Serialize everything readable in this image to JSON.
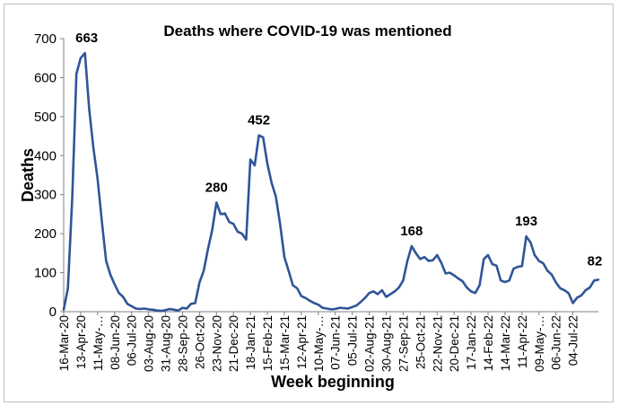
{
  "chart_data": {
    "type": "line",
    "title": "Deaths where COVID-19 was mentioned",
    "xlabel": "Week beginning",
    "ylabel": "Deaths",
    "ylim": [
      0,
      700
    ],
    "yticks": [
      0,
      100,
      200,
      300,
      400,
      500,
      600,
      700
    ],
    "series_color": "#2f5597",
    "x_tick_labels": [
      "16-Mar-20",
      "13-Apr-20",
      "11-May-…",
      "08-Jun-20",
      "06-Jul-20",
      "03-Aug-20",
      "31-Aug-20",
      "28-Sep-20",
      "26-Oct-20",
      "23-Nov-20",
      "21-Dec-20",
      "18-Jan-21",
      "15-Feb-21",
      "15-Mar-21",
      "12-Apr-21",
      "10-May-…",
      "07-Jun-21",
      "05-Jul-21",
      "02-Aug-21",
      "30-Aug-21",
      "27-Sep-21",
      "25-Oct-21",
      "22-Nov-21",
      "20-Dec-21",
      "17-Jan-22",
      "14-Feb-22",
      "14-Mar-22",
      "11-Apr-22",
      "09-May-…",
      "06-Jun-22",
      "04-Jul-22"
    ],
    "tick_every_weeks": 4,
    "values": [
      5,
      60,
      290,
      610,
      650,
      663,
      520,
      420,
      340,
      230,
      130,
      95,
      70,
      48,
      38,
      20,
      14,
      8,
      7,
      8,
      6,
      5,
      3,
      2,
      4,
      7,
      5,
      3,
      10,
      8,
      20,
      22,
      75,
      105,
      160,
      210,
      280,
      250,
      252,
      230,
      225,
      205,
      200,
      185,
      390,
      375,
      452,
      447,
      380,
      330,
      295,
      225,
      140,
      105,
      68,
      60,
      40,
      35,
      28,
      22,
      18,
      10,
      8,
      6,
      7,
      10,
      9,
      8,
      12,
      16,
      25,
      35,
      48,
      52,
      45,
      55,
      38,
      45,
      52,
      62,
      80,
      130,
      168,
      150,
      135,
      140,
      130,
      132,
      145,
      125,
      98,
      100,
      93,
      85,
      78,
      62,
      52,
      48,
      68,
      135,
      145,
      122,
      118,
      80,
      76,
      80,
      110,
      115,
      117,
      193,
      178,
      145,
      130,
      124,
      105,
      95,
      75,
      60,
      55,
      47,
      22,
      36,
      42,
      55,
      62,
      80,
      82
    ],
    "annotations": [
      {
        "label": "663",
        "index": 5
      },
      {
        "label": "280",
        "index": 36
      },
      {
        "label": "452",
        "index": 46
      },
      {
        "label": "168",
        "index": 82
      },
      {
        "label": "193",
        "index": 109
      },
      {
        "label": "82",
        "index": 126
      }
    ]
  }
}
